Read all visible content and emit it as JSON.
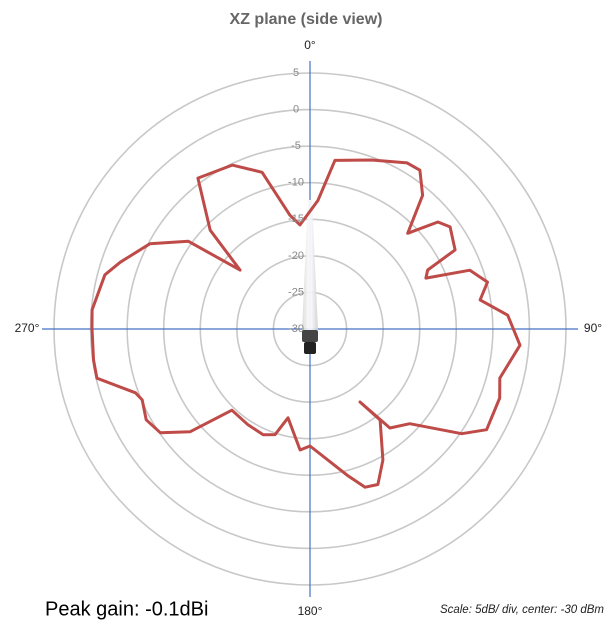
{
  "chart_data": {
    "type": "polar",
    "title": "XZ plane (side view)",
    "annotations": [
      "Peak gain: -0.1dBi",
      "Scale: 5dB/ div, center: -30 dBm"
    ],
    "color": "#be4b48",
    "theta": [
      3.5,
      8.4,
      20.1,
      30.3,
      34.7,
      40.1,
      45.6,
      50.1,
      53.9,
      61.4,
      63.4,
      66.3,
      69.8,
      75.2,
      80.3,
      86.0,
      94.4,
      104.5,
      110.0,
      119.7,
      124.6,
      133.5,
      141.1,
      145.6,
      142.4,
      150.9,
      156.4,
      160.8,
      165.8,
      180.0,
      184.7,
      193.9,
      198.3,
      203.9,
      212.9,
      223.9,
      229.4,
      235.3,
      241.0,
      247.1,
      249.9,
      257.0,
      261.9,
      270.3,
      275.0,
      284.8,
      289.4,
      298.0,
      305.8,
      310.1,
      314.7,
      323.4,
      334.6,
      343.0,
      350.0,
      354.5
    ],
    "values": [
      -12.4,
      -6.7,
      -5.4,
      -3.7,
      -3.6,
      -6.1,
      -11.3,
      -7.2,
      -6.3,
      -7.4,
      -12.0,
      -12.7,
      -6.7,
      -4.9,
      -6.4,
      -2.9,
      -1.2,
      -3.2,
      -2.4,
      -2.2,
      -4.8,
      -11.2,
      -12.6,
      -17.9,
      -14.3,
      -9.5,
      -6.8,
      -7.1,
      -9.4,
      -14.0,
      -13.4,
      -17.5,
      -14.8,
      -14.2,
      -14.4,
      -14.6,
      -8.4,
      -5.1,
      -4.4,
      -5.1,
      -4.6,
      -0.1,
      -0.1,
      -0.2,
      -0.1,
      -1.0,
      -2.5,
      -5.2,
      -9.5,
      -17.5,
      -10.8,
      -4.3,
      -5.2,
      -7.6,
      -14.2,
      -15.7
    ],
    "rlim": [
      -30,
      5
    ],
    "rticks": [
      -30,
      -25,
      -20,
      -15,
      -10,
      -5,
      0,
      5
    ],
    "thetaticks": [
      {
        "value": 0,
        "label": "0°"
      },
      {
        "value": 90,
        "label": "90°"
      },
      {
        "value": 180,
        "label": "180°"
      },
      {
        "value": 270,
        "label": "270°"
      }
    ],
    "grid": true
  }
}
